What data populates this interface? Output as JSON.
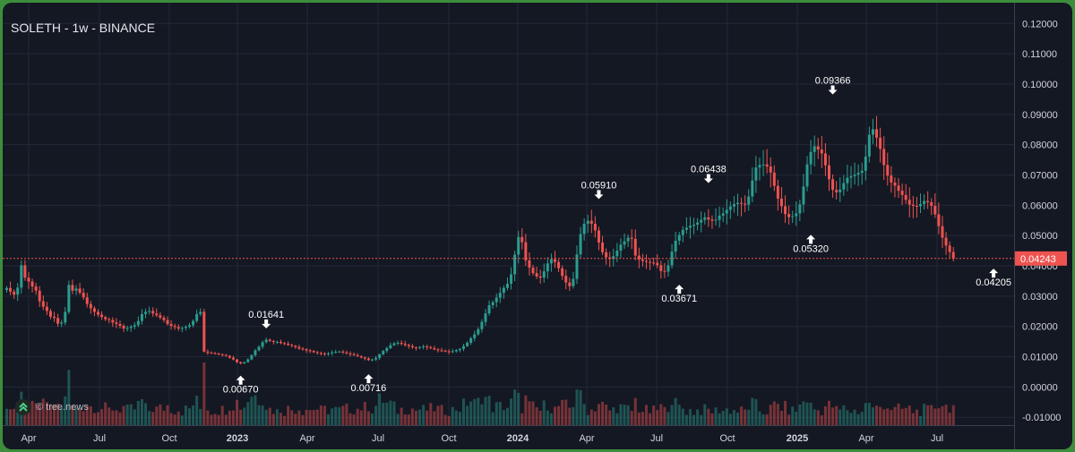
{
  "header": {
    "title": "SOLETH - 1w - BINANCE"
  },
  "watermark": {
    "text": "© tree.news"
  },
  "colors": {
    "up": "#2a9d8f",
    "down": "#ef5350",
    "background": "#141823",
    "grid": "#232838",
    "axis_text": "#d1d4dc",
    "last_price_line": "#ef5350"
  },
  "chart_data": {
    "type": "candlestick",
    "title": "SOLETH - 1w - BINANCE",
    "ylim": [
      -0.012,
      0.126
    ],
    "y_ticks": [
      "0.12000",
      "0.11000",
      "0.10000",
      "0.09000",
      "0.08000",
      "0.07000",
      "0.06000",
      "0.05000",
      "0.04000",
      "0.03000",
      "0.02000",
      "0.01000",
      "0.00000",
      "-0.01000"
    ],
    "x_ticks": [
      "Apr",
      "Jul",
      "Oct",
      "2023",
      "Apr",
      "Jul",
      "Oct",
      "2024",
      "Apr",
      "Jul",
      "Oct",
      "2025",
      "Apr",
      "Jul"
    ],
    "bold_x_ticks": [
      "2023",
      "2024",
      "2025"
    ],
    "last_price": "0.04243",
    "grid": true,
    "annotations": [
      {
        "label": "0.00670",
        "index": 64,
        "value": 0.0067,
        "position": "below"
      },
      {
        "label": "0.01641",
        "index": 71,
        "value": 0.01641,
        "position": "above"
      },
      {
        "label": "0.00716",
        "index": 99,
        "value": 0.00716,
        "position": "below"
      },
      {
        "label": "0.05910",
        "index": 162,
        "value": 0.0591,
        "position": "above"
      },
      {
        "label": "0.03671",
        "index": 184,
        "value": 0.03671,
        "position": "below"
      },
      {
        "label": "0.06438",
        "index": 192,
        "value": 0.06438,
        "position": "above"
      },
      {
        "label": "0.05320",
        "index": 220,
        "value": 0.0532,
        "position": "below"
      },
      {
        "label": "0.09366",
        "index": 226,
        "value": 0.09366,
        "position": "above"
      },
      {
        "label": "0.04205",
        "index": 270,
        "value": 0.04205,
        "position": "below"
      }
    ],
    "closes": [
      0.0327,
      0.0315,
      0.0305,
      0.0328,
      0.0402,
      0.0361,
      0.0348,
      0.0332,
      0.0318,
      0.0283,
      0.0265,
      0.0251,
      0.0232,
      0.0228,
      0.0209,
      0.0213,
      0.0248,
      0.0337,
      0.0318,
      0.0325,
      0.0311,
      0.0296,
      0.0274,
      0.026,
      0.0248,
      0.0239,
      0.0231,
      0.0224,
      0.0221,
      0.0213,
      0.0208,
      0.0202,
      0.0193,
      0.0195,
      0.0199,
      0.0204,
      0.0218,
      0.0241,
      0.0248,
      0.0251,
      0.0243,
      0.0237,
      0.0229,
      0.0221,
      0.0208,
      0.0202,
      0.0198,
      0.0193,
      0.0195,
      0.0199,
      0.0204,
      0.0218,
      0.0241,
      0.0248,
      0.0117,
      0.0113,
      0.0112,
      0.011,
      0.0108,
      0.0106,
      0.0103,
      0.0097,
      0.0091,
      0.0082,
      0.0078,
      0.0082,
      0.0091,
      0.0105,
      0.0121,
      0.0133,
      0.0148,
      0.0156,
      0.0152,
      0.0149,
      0.0149,
      0.0145,
      0.0143,
      0.0139,
      0.0136,
      0.0132,
      0.0127,
      0.0125,
      0.0121,
      0.0119,
      0.0115,
      0.0112,
      0.0111,
      0.0109,
      0.0111,
      0.0114,
      0.0116,
      0.0117,
      0.0114,
      0.0111,
      0.0108,
      0.0105,
      0.0102,
      0.0098,
      0.0094,
      0.0089,
      0.0091,
      0.0096,
      0.0108,
      0.0119,
      0.0128,
      0.0138,
      0.0144,
      0.0146,
      0.0143,
      0.0139,
      0.0135,
      0.0131,
      0.0129,
      0.0132,
      0.0134,
      0.0131,
      0.0128,
      0.0124,
      0.0121,
      0.012,
      0.0118,
      0.0116,
      0.0118,
      0.0122,
      0.0126,
      0.0135,
      0.0146,
      0.0161,
      0.0174,
      0.0191,
      0.0215,
      0.0243,
      0.027,
      0.028,
      0.0295,
      0.0311,
      0.0327,
      0.0341,
      0.0372,
      0.0437,
      0.0495,
      0.0478,
      0.0418,
      0.0394,
      0.0376,
      0.0365,
      0.0361,
      0.0382,
      0.0408,
      0.0422,
      0.0413,
      0.0392,
      0.0367,
      0.0345,
      0.0333,
      0.0357,
      0.0438,
      0.0505,
      0.0539,
      0.0549,
      0.0539,
      0.0517,
      0.0477,
      0.0445,
      0.0428,
      0.0423,
      0.0432,
      0.045,
      0.047,
      0.0481,
      0.0493,
      0.0489,
      0.0434,
      0.0421,
      0.0416,
      0.0413,
      0.0411,
      0.041,
      0.0402,
      0.0383,
      0.0381,
      0.0402,
      0.0447,
      0.0483,
      0.0502,
      0.0519,
      0.0526,
      0.0532,
      0.0536,
      0.0543,
      0.0552,
      0.056,
      0.0553,
      0.0549,
      0.0552,
      0.0566,
      0.0573,
      0.0585,
      0.0596,
      0.0604,
      0.0608,
      0.0605,
      0.0602,
      0.0629,
      0.0682,
      0.0725,
      0.0733,
      0.0735,
      0.0728,
      0.0708,
      0.0664,
      0.0622,
      0.0597,
      0.0571,
      0.0561,
      0.0564,
      0.0573,
      0.0603,
      0.0662,
      0.0735,
      0.0776,
      0.0795,
      0.0784,
      0.0771,
      0.0732,
      0.0686,
      0.0651,
      0.0643,
      0.0652,
      0.0673,
      0.0691,
      0.0696,
      0.0701,
      0.0707,
      0.0714,
      0.0761,
      0.0833,
      0.0851,
      0.0823,
      0.0786,
      0.0733,
      0.0698,
      0.0675,
      0.0665,
      0.0648,
      0.0634,
      0.0618,
      0.0602,
      0.0598,
      0.0597,
      0.0604,
      0.0614,
      0.061,
      0.0598,
      0.057,
      0.0531,
      0.0493,
      0.0467,
      0.0446,
      0.0424
    ],
    "volume_note": "weekly volume histogram along bottom, colored by candle direction"
  }
}
